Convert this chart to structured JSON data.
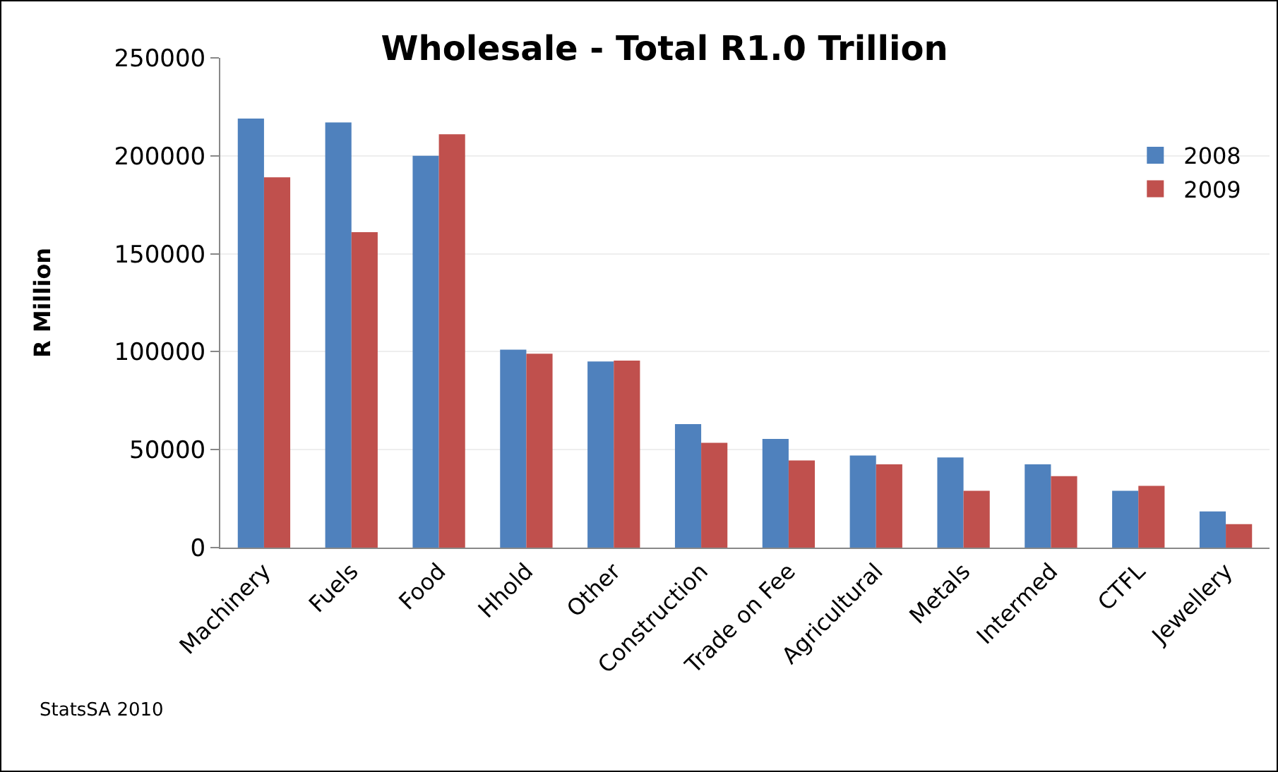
{
  "chart_data": {
    "type": "bar",
    "title": "Wholesale - Total R1.0 Trillion",
    "ylabel": "R Million",
    "categories": [
      "Machinery",
      "Fuels",
      "Food",
      "Hhold",
      "Other",
      "Construction",
      "Trade on Fee",
      "Agricultural",
      "Metals",
      "Intermed",
      "CTFL",
      "Jewellery"
    ],
    "series": [
      {
        "name": "2008",
        "color": "#4f81bd",
        "values": [
          219000,
          217000,
          200000,
          101000,
          95000,
          63000,
          55500,
          47000,
          46000,
          42500,
          29000,
          18500
        ]
      },
      {
        "name": "2009",
        "color": "#c0504d",
        "values": [
          189000,
          161000,
          211000,
          99000,
          95500,
          53500,
          44500,
          42500,
          29000,
          36500,
          31500,
          12000
        ]
      }
    ],
    "ylim": [
      0,
      250000
    ],
    "yticks": [
      0,
      50000,
      100000,
      150000,
      200000,
      250000
    ],
    "grid": "y",
    "legend": "top right",
    "annotations": [
      "StatsSA 2010"
    ]
  }
}
